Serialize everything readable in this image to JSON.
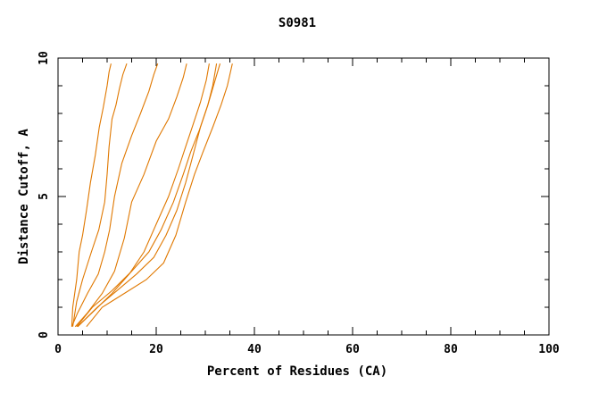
{
  "chart_data": {
    "type": "line",
    "title": "S0981",
    "xlabel": "Percent of Residues (CA)",
    "ylabel": "Distance Cutoff, A",
    "xlim": [
      0,
      100
    ],
    "ylim": [
      0,
      10
    ],
    "xticks": [
      0,
      20,
      40,
      60,
      80,
      100
    ],
    "yticks": [
      0,
      5,
      10
    ],
    "x_minor_step": 5,
    "y_minor_step": 1,
    "grid": false,
    "line_color": "#e07800",
    "series": [
      {
        "x": [
          2.8,
          3.0,
          3.8,
          4.3,
          5.0,
          5.8,
          6.6,
          7.6,
          8.4,
          9.2,
          10.0,
          10.4,
          10.8
        ],
        "y": [
          0.3,
          1.0,
          2.0,
          3.0,
          3.6,
          4.5,
          5.5,
          6.5,
          7.5,
          8.2,
          9.0,
          9.5,
          9.8
        ]
      },
      {
        "x": [
          3.0,
          3.8,
          5.0,
          6.8,
          8.3,
          9.5,
          10.0,
          10.4,
          11.0,
          11.8,
          12.5,
          13.2,
          14.0
        ],
        "y": [
          0.3,
          1.2,
          2.0,
          3.0,
          3.8,
          4.8,
          5.8,
          6.8,
          7.8,
          8.3,
          8.9,
          9.4,
          9.8
        ]
      },
      {
        "x": [
          2.8,
          4.0,
          6.0,
          8.2,
          9.5,
          10.5,
          11.5,
          13.0,
          15.0,
          16.8,
          18.5,
          19.5,
          20.3
        ],
        "y": [
          0.3,
          0.8,
          1.5,
          2.2,
          3.0,
          3.8,
          5.0,
          6.2,
          7.2,
          8.0,
          8.8,
          9.4,
          9.8
        ]
      },
      {
        "x": [
          3.5,
          6.0,
          9.0,
          11.5,
          13.5,
          15.0,
          17.5,
          20.0,
          22.5,
          24.2,
          25.5,
          26.2
        ],
        "y": [
          0.3,
          0.8,
          1.5,
          2.3,
          3.5,
          4.8,
          5.8,
          7.0,
          7.8,
          8.6,
          9.3,
          9.8
        ]
      },
      {
        "x": [
          4.0,
          7.5,
          11.0,
          14.5,
          17.5,
          20.0,
          22.5,
          24.5,
          26.0,
          27.5,
          29.0,
          30.2,
          30.8
        ],
        "y": [
          0.3,
          0.9,
          1.5,
          2.2,
          3.0,
          4.0,
          5.0,
          6.0,
          6.8,
          7.6,
          8.4,
          9.2,
          9.8
        ]
      },
      {
        "x": [
          3.8,
          7.0,
          11.0,
          15.0,
          18.5,
          21.0,
          23.5,
          25.5,
          27.0,
          28.8,
          30.5,
          32.0,
          33.0
        ],
        "y": [
          0.3,
          1.0,
          1.6,
          2.3,
          3.0,
          3.8,
          4.8,
          5.8,
          6.6,
          7.4,
          8.3,
          9.2,
          9.8
        ]
      },
      {
        "x": [
          4.0,
          8.0,
          12.0,
          16.0,
          19.5,
          22.0,
          24.2,
          26.0,
          27.5,
          29.0,
          30.5,
          31.5,
          32.3
        ],
        "y": [
          0.3,
          1.0,
          1.6,
          2.2,
          2.8,
          3.6,
          4.5,
          5.5,
          6.5,
          7.5,
          8.3,
          9.0,
          9.8
        ]
      },
      {
        "x": [
          5.8,
          9.0,
          13.5,
          18.0,
          21.5,
          24.0,
          26.0,
          27.8,
          29.5,
          31.5,
          33.2,
          34.5,
          35.5
        ],
        "y": [
          0.3,
          1.0,
          1.5,
          2.0,
          2.6,
          3.6,
          4.8,
          5.8,
          6.6,
          7.5,
          8.3,
          9.0,
          9.8
        ]
      }
    ]
  }
}
